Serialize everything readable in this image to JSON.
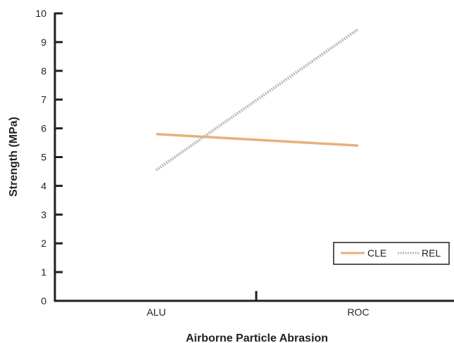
{
  "chart_data": {
    "type": "line",
    "title": "",
    "xlabel": "Airborne Particle Abrasion",
    "ylabel": "Strength (MPa)",
    "categories": [
      "ALU",
      "ROC"
    ],
    "ylim": [
      0,
      10
    ],
    "yticks": [
      "0",
      "1",
      "2",
      "3",
      "4",
      "5",
      "6",
      "7",
      "8",
      "9",
      "10"
    ],
    "grid": false,
    "legend_position": "bottom-right",
    "series": [
      {
        "name": "CLE",
        "values": [
          5.8,
          5.4
        ],
        "color": "#e8b07a",
        "style": "solid"
      },
      {
        "name": "REL",
        "values": [
          4.55,
          9.45
        ],
        "color": "#b8b8b8",
        "style": "dotted"
      }
    ]
  }
}
